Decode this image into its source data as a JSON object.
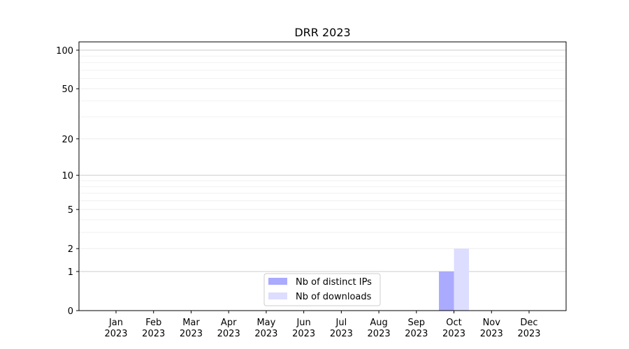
{
  "chart_data": {
    "type": "bar",
    "title": "DRR 2023",
    "xlabel": "",
    "ylabel": "",
    "yscale": "log(1+y)",
    "ylim": [
      0,
      116
    ],
    "yticks": [
      0,
      1,
      2,
      5,
      10,
      20,
      50,
      100
    ],
    "y_minor_grid": [
      3,
      4,
      6,
      7,
      8,
      9,
      30,
      40,
      60,
      70,
      80,
      90
    ],
    "grid": true,
    "legend_placement": "lower-center",
    "categories": [
      "Jan\n2023",
      "Feb\n2023",
      "Mar\n2023",
      "Apr\n2023",
      "May\n2023",
      "Jun\n2023",
      "Jul\n2023",
      "Aug\n2023",
      "Sep\n2023",
      "Oct\n2023",
      "Nov\n2023",
      "Dec\n2023"
    ],
    "series": [
      {
        "name": "Nb of distinct IPs",
        "color": "#aaaaff",
        "values": [
          0,
          0,
          0,
          0,
          0,
          0,
          0,
          0,
          0,
          1,
          0,
          0
        ]
      },
      {
        "name": "Nb of downloads",
        "color": "#ddddff",
        "values": [
          0,
          0,
          0,
          0,
          0,
          0,
          0,
          0,
          0,
          2,
          0,
          0
        ]
      }
    ]
  }
}
